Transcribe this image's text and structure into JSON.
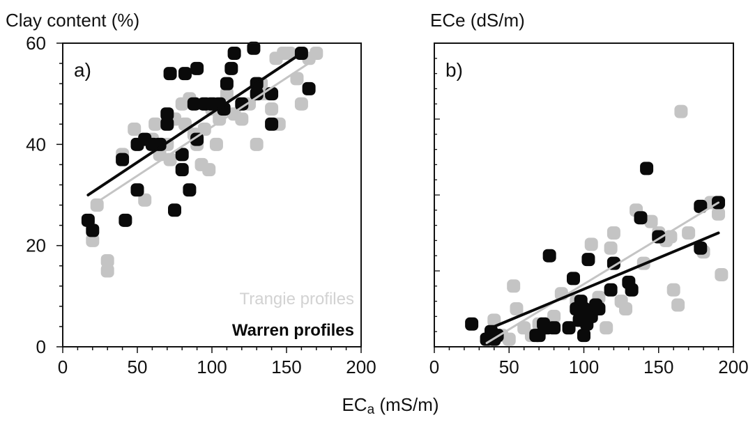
{
  "chart_data": [
    {
      "type": "scatter",
      "panel_label": "a)",
      "ylabel": "Clay content (%)",
      "xlim": [
        0,
        200
      ],
      "ylim": [
        0,
        60
      ],
      "x_ticks": [
        0,
        50,
        100,
        150,
        200
      ],
      "y_ticks": [
        0,
        20,
        40,
        60
      ],
      "legend": [
        "Trangie profiles",
        "Warren profiles"
      ],
      "legend_position": "bottom-right",
      "grid": false,
      "colors": {
        "Trangie profiles": "#c4c4c4",
        "Warren profiles": "#0a0a0a"
      },
      "series": [
        {
          "name": "Trangie profiles",
          "points": [
            [
              20,
              21
            ],
            [
              23,
              28
            ],
            [
              30,
              15
            ],
            [
              30,
              17
            ],
            [
              40,
              38
            ],
            [
              48,
              43
            ],
            [
              55,
              29
            ],
            [
              60,
              41
            ],
            [
              62,
              44
            ],
            [
              65,
              38
            ],
            [
              70,
              40
            ],
            [
              72,
              37
            ],
            [
              75,
              45
            ],
            [
              80,
              48
            ],
            [
              82,
              44
            ],
            [
              85,
              49
            ],
            [
              88,
              42
            ],
            [
              90,
              40
            ],
            [
              93,
              36
            ],
            [
              95,
              43
            ],
            [
              98,
              35
            ],
            [
              100,
              47
            ],
            [
              103,
              40
            ],
            [
              105,
              45
            ],
            [
              110,
              50
            ],
            [
              115,
              46
            ],
            [
              120,
              45
            ],
            [
              125,
              48
            ],
            [
              130,
              40
            ],
            [
              133,
              52
            ],
            [
              135,
              50
            ],
            [
              140,
              47
            ],
            [
              143,
              57
            ],
            [
              145,
              44
            ],
            [
              148,
              58
            ],
            [
              152,
              58
            ],
            [
              157,
              53
            ],
            [
              160,
              48
            ],
            [
              165,
              57
            ],
            [
              170,
              58
            ]
          ],
          "trend": [
            [
              20,
              28
            ],
            [
              170,
              57
            ]
          ]
        },
        {
          "name": "Warren profiles",
          "points": [
            [
              17,
              25
            ],
            [
              20,
              23
            ],
            [
              40,
              37
            ],
            [
              42,
              25
            ],
            [
              50,
              31
            ],
            [
              50,
              40
            ],
            [
              55,
              41
            ],
            [
              60,
              40
            ],
            [
              65,
              40
            ],
            [
              70,
              44
            ],
            [
              70,
              46
            ],
            [
              72,
              54
            ],
            [
              75,
              27
            ],
            [
              80,
              35
            ],
            [
              80,
              38
            ],
            [
              82,
              54
            ],
            [
              85,
              31
            ],
            [
              88,
              48
            ],
            [
              90,
              55
            ],
            [
              90,
              41
            ],
            [
              95,
              48
            ],
            [
              100,
              48
            ],
            [
              105,
              48
            ],
            [
              108,
              47
            ],
            [
              110,
              52
            ],
            [
              113,
              55
            ],
            [
              115,
              58
            ],
            [
              120,
              48
            ],
            [
              128,
              59
            ],
            [
              130,
              50
            ],
            [
              130,
              52
            ],
            [
              140,
              44
            ],
            [
              140,
              50
            ],
            [
              160,
              58
            ],
            [
              165,
              51
            ]
          ],
          "trend": [
            [
              17,
              30
            ],
            [
              160,
              58
            ]
          ]
        }
      ]
    },
    {
      "type": "scatter",
      "panel_label": "b)",
      "ylabel": "ECe (dS/m)",
      "xlim": [
        0,
        200
      ],
      "ylim": [
        0,
        8
      ],
      "x_ticks": [
        0,
        50,
        100,
        150,
        200
      ],
      "grid": false,
      "colors": {
        "Trangie profiles": "#c4c4c4",
        "Warren profiles": "#0a0a0a"
      },
      "series": [
        {
          "name": "Trangie profiles",
          "points": [
            [
              40,
              0.7
            ],
            [
              45,
              0.3
            ],
            [
              50,
              0.2
            ],
            [
              53,
              1.6
            ],
            [
              55,
              1.0
            ],
            [
              60,
              0.5
            ],
            [
              65,
              0.3
            ],
            [
              70,
              0.6
            ],
            [
              80,
              0.8
            ],
            [
              85,
              1.4
            ],
            [
              90,
              0.5
            ],
            [
              95,
              1.2
            ],
            [
              100,
              1.0
            ],
            [
              102,
              0.6
            ],
            [
              105,
              2.7
            ],
            [
              110,
              1.3
            ],
            [
              115,
              0.5
            ],
            [
              118,
              2.6
            ],
            [
              120,
              3.0
            ],
            [
              125,
              1.2
            ],
            [
              128,
              1.0
            ],
            [
              132,
              1.5
            ],
            [
              135,
              3.6
            ],
            [
              140,
              2.2
            ],
            [
              145,
              3.3
            ],
            [
              150,
              3.0
            ],
            [
              155,
              2.8
            ],
            [
              158,
              2.9
            ],
            [
              160,
              1.5
            ],
            [
              163,
              1.1
            ],
            [
              165,
              6.2
            ],
            [
              170,
              3.0
            ],
            [
              180,
              2.5
            ],
            [
              185,
              3.8
            ],
            [
              190,
              3.5
            ],
            [
              192,
              1.9
            ]
          ],
          "trend": [
            [
              35,
              0.1
            ],
            [
              190,
              3.8
            ]
          ]
        },
        {
          "name": "Warren profiles",
          "points": [
            [
              25,
              0.6
            ],
            [
              35,
              0.2
            ],
            [
              38,
              0.4
            ],
            [
              40,
              0.2
            ],
            [
              42,
              0.3
            ],
            [
              68,
              0.3
            ],
            [
              70,
              0.3
            ],
            [
              73,
              0.6
            ],
            [
              75,
              0.5
            ],
            [
              77,
              2.4
            ],
            [
              80,
              0.5
            ],
            [
              90,
              0.5
            ],
            [
              93,
              1.8
            ],
            [
              95,
              1.0
            ],
            [
              97,
              0.7
            ],
            [
              98,
              0.9
            ],
            [
              98,
              1.2
            ],
            [
              100,
              0.3
            ],
            [
              100,
              1.0
            ],
            [
              102,
              0.6
            ],
            [
              103,
              2.3
            ],
            [
              105,
              0.8
            ],
            [
              108,
              1.1
            ],
            [
              110,
              1.0
            ],
            [
              118,
              1.5
            ],
            [
              120,
              2.2
            ],
            [
              130,
              1.7
            ],
            [
              132,
              1.5
            ],
            [
              138,
              3.4
            ],
            [
              142,
              4.7
            ],
            [
              150,
              2.9
            ],
            [
              178,
              3.7
            ],
            [
              178,
              2.6
            ],
            [
              190,
              3.8
            ]
          ],
          "trend": [
            [
              35,
              0.45
            ],
            [
              190,
              3.0
            ]
          ]
        }
      ]
    }
  ],
  "shared_xlabel": {
    "main": "EC",
    "sub": "a",
    "unit": " (mS/m)"
  }
}
